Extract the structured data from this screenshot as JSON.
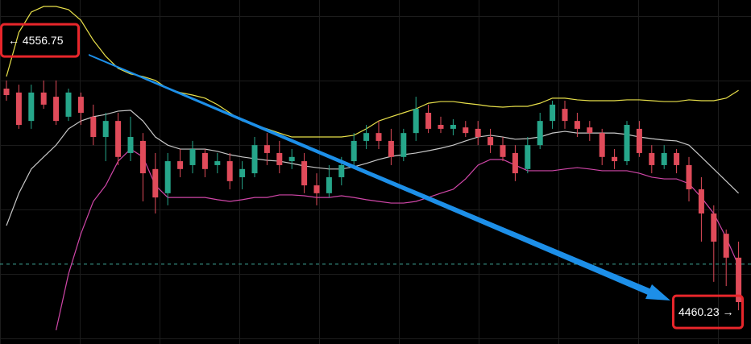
{
  "chart_data": {
    "type": "candlestick",
    "ylim": [
      4448.8,
      4571.1
    ],
    "up_color": "#26a68a",
    "down_color": "#e04b5a",
    "candles": {
      "open": [
        4539.6,
        4538.2,
        4528.1,
        4538.2,
        4536.7,
        4529.6,
        4536.7,
        4529.6,
        4522.4,
        4528.1,
        4516.7,
        4521.0,
        4511.0,
        4502.4,
        4513.8,
        4512.4,
        4516.7,
        4512.4,
        4513.8,
        4508.1,
        4509.5,
        4519.5,
        4516.7,
        4513.8,
        4513.8,
        4505.2,
        4502.4,
        4508.1,
        4513.8,
        4521.0,
        4523.8,
        4521.0,
        4515.3,
        4523.8,
        4531.0,
        4526.7,
        4525.3,
        4525.8,
        4525.3,
        4522.4,
        4519.5,
        4516.7,
        4511.0,
        4519.5,
        4528.1,
        4532.4,
        4528.1,
        4525.8,
        4523.8,
        4515.3,
        4513.8,
        4525.3,
        4516.7,
        4512.4,
        4516.7,
        4512.4,
        4503.8,
        4495.2,
        4488.0,
        4479.5
      ],
      "high": [
        4542.5,
        4541.0,
        4541.0,
        4542.5,
        4542.5,
        4539.6,
        4538.2,
        4533.9,
        4531.0,
        4531.0,
        4529.6,
        4523.8,
        4516.7,
        4516.7,
        4518.1,
        4521.0,
        4518.1,
        4516.7,
        4516.7,
        4513.8,
        4522.4,
        4523.8,
        4521.0,
        4518.1,
        4516.7,
        4509.5,
        4512.4,
        4515.3,
        4523.8,
        4526.7,
        4528.1,
        4525.3,
        4525.3,
        4536.7,
        4533.9,
        4529.6,
        4528.7,
        4528.1,
        4528.1,
        4525.3,
        4522.4,
        4519.5,
        4522.4,
        4531.0,
        4535.3,
        4535.3,
        4531.0,
        4528.1,
        4525.3,
        4518.1,
        4528.1,
        4528.1,
        4519.5,
        4519.5,
        4518.1,
        4515.3,
        4508.1,
        4498.1,
        4489.5,
        4485.2
      ],
      "low": [
        4535.3,
        4525.3,
        4525.3,
        4532.4,
        4526.7,
        4528.1,
        4526.7,
        4519.5,
        4513.8,
        4512.4,
        4513.8,
        4499.5,
        4495.2,
        4498.1,
        4508.1,
        4509.5,
        4508.1,
        4509.5,
        4503.8,
        4503.8,
        4508.1,
        4512.4,
        4509.5,
        4511.0,
        4502.4,
        4498.1,
        4500.9,
        4505.2,
        4511.0,
        4518.1,
        4518.1,
        4512.4,
        4513.8,
        4521.0,
        4523.8,
        4523.8,
        4523.0,
        4522.4,
        4519.5,
        4516.7,
        4513.8,
        4506.7,
        4509.5,
        4518.1,
        4525.3,
        4525.3,
        4522.4,
        4521.0,
        4512.4,
        4511.0,
        4512.4,
        4515.3,
        4509.5,
        4511.0,
        4509.5,
        4499.5,
        4485.2,
        4470.9,
        4469.4,
        4460.8
      ],
      "close": [
        4537.3,
        4526.7,
        4538.2,
        4533.9,
        4528.1,
        4538.2,
        4531.0,
        4522.4,
        4528.1,
        4515.3,
        4522.4,
        4509.5,
        4500.9,
        4513.8,
        4511.0,
        4518.1,
        4511.0,
        4513.8,
        4506.7,
        4511.0,
        4519.5,
        4516.7,
        4512.4,
        4515.3,
        4505.2,
        4502.4,
        4508.1,
        4512.4,
        4521.0,
        4523.8,
        4521.0,
        4515.3,
        4523.8,
        4532.4,
        4525.3,
        4525.3,
        4526.7,
        4523.8,
        4522.4,
        4519.5,
        4515.3,
        4509.5,
        4519.5,
        4528.1,
        4533.9,
        4528.1,
        4525.3,
        4523.8,
        4515.3,
        4513.8,
        4526.7,
        4516.7,
        4512.4,
        4516.7,
        4512.4,
        4503.8,
        4495.2,
        4485.2,
        4479.5,
        4463.7
      ]
    },
    "bands": [
      {
        "color": "#e8e04a",
        "values": [
          4543.9,
          4559.6,
          4566.8,
          4568.8,
          4568.8,
          4567.7,
          4563.9,
          4556.8,
          4551.1,
          4546.8,
          4544.8,
          4543.9,
          4542.5,
          4539.6,
          4538.2,
          4537.3,
          4536.2,
          4533.9,
          4531.0,
          4528.1,
          4526.7,
          4525.3,
          4523.8,
          4522.4,
          4522.4,
          4522.4,
          4522.4,
          4522.4,
          4523.0,
          4525.3,
          4528.1,
          4529.6,
          4531.0,
          4532.4,
          4534.4,
          4535.0,
          4535.0,
          4534.4,
          4533.9,
          4533.3,
          4533.0,
          4533.3,
          4533.3,
          4534.4,
          4536.2,
          4536.2,
          4535.6,
          4535.3,
          4535.3,
          4535.3,
          4535.6,
          4535.6,
          4535.3,
          4535.0,
          4535.0,
          4535.6,
          4535.3,
          4535.3,
          4536.2,
          4539.0
        ]
      },
      {
        "color": "#c8c8c8",
        "values": [
          4490.9,
          4502.4,
          4511.0,
          4515.3,
          4519.5,
          4525.3,
          4528.1,
          4529.6,
          4530.4,
          4531.6,
          4531.9,
          4528.1,
          4522.4,
          4519.5,
          4518.1,
          4518.1,
          4518.1,
          4517.3,
          4516.1,
          4515.3,
          4514.7,
          4514.1,
          4513.8,
          4513.0,
          4512.1,
          4511.5,
          4511.0,
          4511.0,
          4511.8,
          4513.0,
          4514.4,
          4515.5,
          4516.1,
          4516.7,
          4517.5,
          4518.4,
          4519.5,
          4521.0,
          4522.4,
          4523.0,
          4522.4,
          4521.6,
          4521.8,
          4522.4,
          4523.8,
          4524.4,
          4523.8,
          4523.8,
          4523.8,
          4523.8,
          4523.3,
          4522.4,
          4521.8,
          4521.3,
          4521.0,
          4519.5,
          4515.3,
          4511.0,
          4506.7,
          4502.4
        ]
      },
      {
        "color": "#d046a8",
        "values": [
          null,
          null,
          null,
          null,
          4453.7,
          4473.7,
          4488.0,
          4499.5,
          4505.2,
          4513.8,
          4518.1,
          4515.3,
          4505.2,
          4500.9,
          4500.9,
          4500.9,
          4500.9,
          4500.1,
          4499.5,
          4500.1,
          4500.9,
          4500.9,
          4501.8,
          4501.8,
          4501.5,
          4500.9,
          4500.9,
          4501.5,
          4500.9,
          4500.1,
          4499.5,
          4498.9,
          4498.9,
          4499.5,
          4500.9,
          4502.4,
          4503.8,
          4507.5,
          4512.4,
          4514.4,
          4514.4,
          4512.4,
          4510.4,
          4510.4,
          4510.4,
          4511.0,
          4511.5,
          4511.0,
          4510.4,
          4510.4,
          4510.4,
          4509.5,
          4508.1,
          4507.5,
          4507.5,
          4505.8,
          4500.9,
          4495.2,
          4486.6,
          4476.6
        ]
      }
    ],
    "reference_line": 4477.2,
    "annotations": [
      {
        "label": "← 4556.75",
        "value": 4556.75
      },
      {
        "label": "4460.23 →",
        "value": 4460.23
      }
    ]
  }
}
